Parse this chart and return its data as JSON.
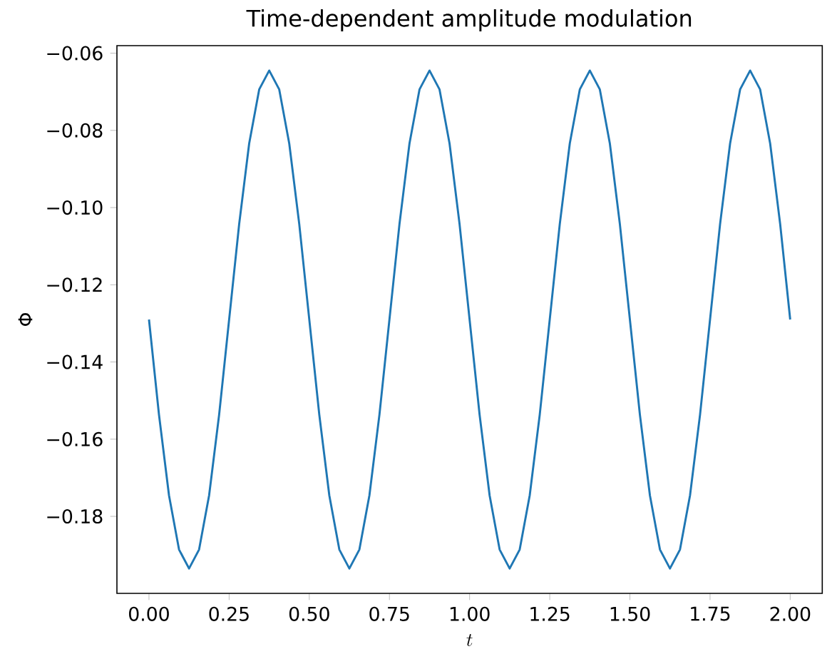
{
  "chart_data": {
    "type": "line",
    "title": "Time-dependent amplitude modulation",
    "xlabel": "t",
    "ylabel": "Φ",
    "xlim": [
      -0.1,
      2.1
    ],
    "ylim": [
      -0.19995,
      -0.05805
    ],
    "xticks": [
      {
        "value": 0,
        "label": "0.00"
      },
      {
        "value": 0.25,
        "label": "0.25"
      },
      {
        "value": 0.5,
        "label": "0.50"
      },
      {
        "value": 0.75,
        "label": "0.75"
      },
      {
        "value": 1,
        "label": "1.00"
      },
      {
        "value": 1.25,
        "label": "1.25"
      },
      {
        "value": 1.5,
        "label": "1.50"
      },
      {
        "value": 1.75,
        "label": "1.75"
      },
      {
        "value": 2,
        "label": "2.00"
      }
    ],
    "yticks": [
      {
        "value": -0.18,
        "label": "−0.18"
      },
      {
        "value": -0.16,
        "label": "−0.16"
      },
      {
        "value": -0.14,
        "label": "−0.14"
      },
      {
        "value": -0.12,
        "label": "−0.12"
      },
      {
        "value": -0.1,
        "label": "−0.10"
      },
      {
        "value": -0.08,
        "label": "−0.08"
      },
      {
        "value": -0.06,
        "label": "−0.06"
      }
    ],
    "x": [
      0,
      0.03125,
      0.0625,
      0.09375,
      0.125,
      0.15625,
      0.1875,
      0.21875,
      0.25,
      0.28125,
      0.3125,
      0.34375,
      0.375,
      0.40625,
      0.4375,
      0.46875,
      0.5,
      0.53125,
      0.5625,
      0.59375,
      0.625,
      0.65625,
      0.6875,
      0.71875,
      0.75,
      0.78125,
      0.8125,
      0.84375,
      0.875,
      0.90625,
      0.9375,
      0.96875,
      1,
      1.03125,
      1.0625,
      1.09375,
      1.125,
      1.15625,
      1.1875,
      1.21875,
      1.25,
      1.28125,
      1.3125,
      1.34375,
      1.375,
      1.40625,
      1.4375,
      1.46875,
      1.5,
      1.53125,
      1.5625,
      1.59375,
      1.625,
      1.65625,
      1.6875,
      1.71875,
      1.75,
      1.78125,
      1.8125,
      1.84375,
      1.875,
      1.90625,
      1.9375,
      1.96875,
      2
    ],
    "series": [
      {
        "color": "#1f77b4",
        "values": [
          -0.129,
          -0.1537,
          -0.1746,
          -0.1886,
          -0.1935,
          -0.1886,
          -0.1746,
          -0.1537,
          -0.129,
          -0.1043,
          -0.0834,
          -0.0694,
          -0.0645,
          -0.0694,
          -0.0834,
          -0.1043,
          -0.129,
          -0.1537,
          -0.1746,
          -0.1886,
          -0.1935,
          -0.1886,
          -0.1746,
          -0.1537,
          -0.129,
          -0.1043,
          -0.0834,
          -0.0694,
          -0.0645,
          -0.0694,
          -0.0834,
          -0.1043,
          -0.129,
          -0.1537,
          -0.1746,
          -0.1886,
          -0.1935,
          -0.1886,
          -0.1746,
          -0.1537,
          -0.129,
          -0.1043,
          -0.0834,
          -0.0694,
          -0.0645,
          -0.0694,
          -0.0834,
          -0.1043,
          -0.129,
          -0.1537,
          -0.1746,
          -0.1886,
          -0.1935,
          -0.1886,
          -0.1746,
          -0.1537,
          -0.129,
          -0.1043,
          -0.0834,
          -0.0694,
          -0.0645,
          -0.0694,
          -0.0834,
          -0.1043,
          -0.129
        ]
      }
    ]
  }
}
